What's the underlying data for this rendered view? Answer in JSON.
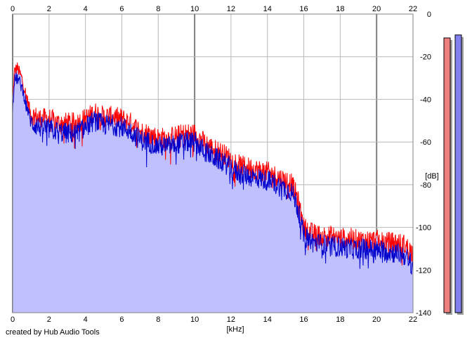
{
  "credit": "created by Hub Audio Tools",
  "colors": {
    "background": "#ffffff",
    "plot_background": "#ffffff",
    "grid_major": "#808080",
    "grid_minor": "#b8b8b8",
    "fill": "#c0c0ff",
    "series_red": "#ff0000",
    "series_blue": "#0000cc",
    "meter_red": "#f08080",
    "meter_blue": "#8080f0",
    "meter_shadow": "#a0a0a0"
  },
  "chart_data": {
    "type": "line",
    "xlabel": "[kHz]",
    "ylabel": "[dB]",
    "xlim": [
      0,
      22
    ],
    "ylim": [
      -140,
      0
    ],
    "x_ticks": [
      "0",
      "2",
      "4",
      "6",
      "8",
      "10",
      "12",
      "14",
      "16",
      "18",
      "20",
      "22"
    ],
    "x_tick_values": [
      0,
      2,
      4,
      6,
      8,
      10,
      12,
      14,
      16,
      18,
      20,
      22
    ],
    "y_ticks": [
      "0",
      "-20",
      "-40",
      "-60",
      "-80",
      "-100",
      "-120",
      "-140"
    ],
    "y_tick_values": [
      0,
      -20,
      -40,
      -60,
      -80,
      -100,
      -120,
      -140
    ],
    "grid": true,
    "filled_area": true,
    "series": [
      {
        "color": "#ff0000",
        "x": [
          0,
          0.1,
          0.25,
          0.5,
          0.8,
          1.0,
          1.5,
          2.0,
          2.5,
          3.0,
          3.5,
          4.0,
          4.5,
          5.0,
          5.5,
          6.0,
          6.5,
          7.0,
          7.5,
          8.0,
          8.5,
          9.0,
          9.5,
          10.0,
          10.5,
          11.0,
          11.5,
          12.0,
          12.5,
          13.0,
          13.5,
          14.0,
          14.5,
          15.0,
          15.3,
          15.6,
          15.8,
          16.0,
          16.5,
          17.0,
          17.5,
          18.0,
          18.5,
          19.0,
          19.5,
          20.0,
          20.5,
          21.0,
          21.5,
          22.0
        ],
        "values": [
          -40,
          -27,
          -25,
          -30,
          -40,
          -47,
          -49,
          -49,
          -51,
          -51,
          -51,
          -49,
          -46,
          -48,
          -48,
          -49,
          -51,
          -55,
          -56,
          -58,
          -58,
          -57,
          -56,
          -56,
          -60,
          -63,
          -65,
          -68,
          -71,
          -72,
          -73,
          -74,
          -76,
          -78,
          -79,
          -85,
          -92,
          -100,
          -103,
          -104,
          -104,
          -105,
          -105,
          -106,
          -106,
          -106,
          -107,
          -107,
          -108,
          -112
        ]
      },
      {
        "color": "#0000cc",
        "x": [
          0,
          0.1,
          0.25,
          0.5,
          0.8,
          1.0,
          1.5,
          2.0,
          2.5,
          3.0,
          3.5,
          4.0,
          4.5,
          5.0,
          5.5,
          6.0,
          6.5,
          7.0,
          7.5,
          8.0,
          8.5,
          9.0,
          9.5,
          10.0,
          10.5,
          11.0,
          11.5,
          12.0,
          12.5,
          13.0,
          13.5,
          14.0,
          14.5,
          15.0,
          15.3,
          15.6,
          15.8,
          16.0,
          16.5,
          17.0,
          17.5,
          18.0,
          18.5,
          19.0,
          19.5,
          20.0,
          20.5,
          21.0,
          21.5,
          22.0
        ],
        "values": [
          -44,
          -31,
          -30,
          -34,
          -44,
          -51,
          -53,
          -54,
          -55,
          -56,
          -56,
          -53,
          -50,
          -52,
          -52,
          -53,
          -55,
          -59,
          -60,
          -62,
          -62,
          -61,
          -60,
          -60,
          -64,
          -67,
          -69,
          -72,
          -75,
          -76,
          -77,
          -78,
          -80,
          -82,
          -83,
          -89,
          -96,
          -104,
          -107,
          -108,
          -109,
          -109,
          -110,
          -110,
          -110,
          -111,
          -111,
          -112,
          -113,
          -118
        ]
      }
    ]
  },
  "meters": [
    {
      "color": "#f08080",
      "level": 0.92
    },
    {
      "color": "#8080f0",
      "level": 0.93
    }
  ]
}
